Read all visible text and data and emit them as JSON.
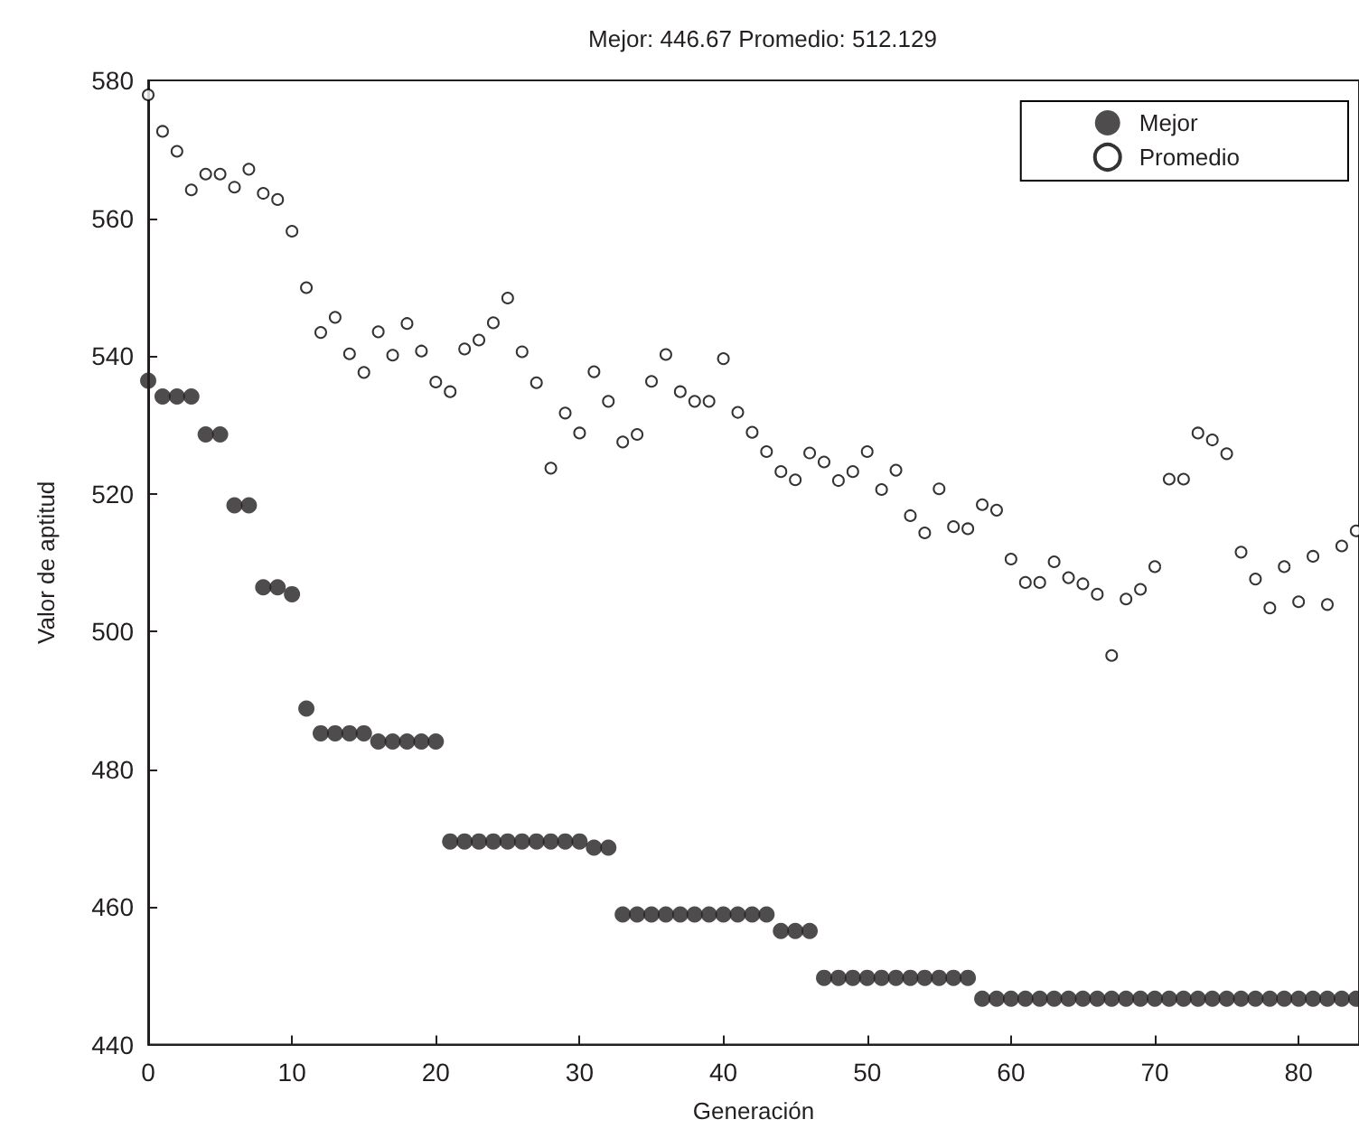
{
  "chart_data": {
    "type": "scatter",
    "title": "Mejor: 446.67 Promedio: 512.129",
    "xlabel": "Generación",
    "ylabel": "Valor de aptitud",
    "x": [
      0,
      1,
      2,
      3,
      4,
      5,
      6,
      7,
      8,
      9,
      10,
      11,
      12,
      13,
      14,
      15,
      16,
      17,
      18,
      19,
      20,
      21,
      22,
      23,
      24,
      25,
      26,
      27,
      28,
      29,
      30,
      31,
      32,
      33,
      34,
      35,
      36,
      37,
      38,
      39,
      40,
      41,
      42,
      43,
      44,
      45,
      46,
      47,
      48,
      49,
      50,
      51,
      52,
      53,
      54,
      55,
      56,
      57,
      58,
      59,
      60,
      61,
      62,
      63,
      64,
      65,
      66,
      67,
      68,
      69,
      70,
      71,
      72,
      73,
      74,
      75,
      76,
      77,
      78,
      79,
      80,
      81,
      82,
      83,
      84
    ],
    "series": [
      {
        "name": "Mejor",
        "color": "#231f20",
        "values": [
          536.4,
          534.1,
          534.1,
          534.1,
          528.6,
          528.6,
          518.3,
          518.3,
          506.4,
          506.4,
          505.4,
          488.8,
          485.2,
          485.2,
          485.2,
          485.2,
          484.0,
          484.0,
          484.0,
          484.0,
          484.0,
          469.5,
          469.5,
          469.5,
          469.5,
          469.5,
          469.5,
          469.5,
          469.5,
          469.5,
          469.5,
          468.6,
          468.6,
          458.9,
          458.9,
          458.9,
          458.9,
          458.9,
          458.9,
          458.9,
          458.9,
          458.9,
          458.9,
          458.9,
          456.5,
          456.5,
          456.5,
          449.7,
          449.7,
          449.7,
          449.7,
          449.7,
          449.7,
          449.7,
          449.7,
          449.7,
          449.7,
          449.7,
          446.67,
          446.67,
          446.67,
          446.67,
          446.67,
          446.67,
          446.67,
          446.67,
          446.67,
          446.67,
          446.67,
          446.67,
          446.67,
          446.67,
          446.67,
          446.67,
          446.67,
          446.67,
          446.67,
          446.67,
          446.67,
          446.67,
          446.67,
          446.67,
          446.67,
          446.67,
          446.67
        ]
      },
      {
        "name": "Promedio",
        "color": "#ffffff",
        "values": [
          577.9,
          572.6,
          569.7,
          564.1,
          566.4,
          566.4,
          564.5,
          567.1,
          563.6,
          562.7,
          558.1,
          549.9,
          543.4,
          545.6,
          540.3,
          537.6,
          543.5,
          540.1,
          544.7,
          540.7,
          536.2,
          534.8,
          541.0,
          542.3,
          544.8,
          548.4,
          540.6,
          536.1,
          523.7,
          531.7,
          528.8,
          537.7,
          533.4,
          527.5,
          528.6,
          536.3,
          540.2,
          534.8,
          533.4,
          533.4,
          539.6,
          531.8,
          528.9,
          526.1,
          523.2,
          522.0,
          525.9,
          524.6,
          521.9,
          523.2,
          526.1,
          520.6,
          523.4,
          516.8,
          514.3,
          520.7,
          515.2,
          514.9,
          518.4,
          517.6,
          510.5,
          507.1,
          507.1,
          510.1,
          507.8,
          506.9,
          505.4,
          496.5,
          504.7,
          506.1,
          509.4,
          522.1,
          522.1,
          528.8,
          527.8,
          525.8,
          511.5,
          507.6,
          503.4,
          509.4,
          504.3,
          510.9,
          503.9,
          512.4,
          514.6
        ]
      }
    ],
    "xlim": [
      0,
      84.2
    ],
    "xticks": [
      0,
      10,
      20,
      30,
      40,
      50,
      60,
      70,
      80
    ],
    "ylim": [
      440,
      580
    ],
    "yticks": [
      440,
      460,
      480,
      500,
      520,
      540,
      560,
      580
    ],
    "legend": "top right",
    "marker": "circle",
    "grid": false
  }
}
